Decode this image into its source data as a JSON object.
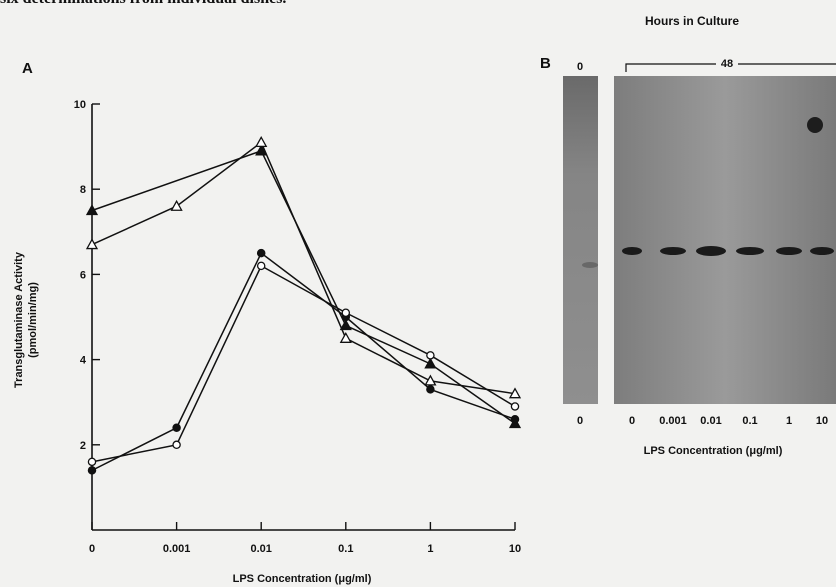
{
  "caption": "six determinations from individual dishes.",
  "panel_a": {
    "letter": "A"
  },
  "panel_b": {
    "letter": "B",
    "hours_title": "Hours in Culture",
    "time_left": "0",
    "time_right": "48",
    "left_lane_label": "0",
    "lane_labels": [
      "0",
      "0.001",
      "0.01",
      "0.1",
      "1",
      "10"
    ],
    "xlabel": "LPS Concentration (μg/ml)"
  },
  "chart_data": {
    "type": "line",
    "categories": [
      "0",
      "0.001",
      "0.01",
      "0.1",
      "1",
      "10"
    ],
    "ylabel": "Transglutaminase Activity",
    "ylabel2": "(pmol/min/mg)",
    "xlabel": "LPS Concentration (μg/ml)",
    "ylim": [
      0,
      10
    ],
    "yticks": [
      2,
      4,
      6,
      8,
      10
    ],
    "series": [
      {
        "marker": "triangle-filled",
        "values": [
          7.5,
          null,
          8.9,
          4.8,
          3.9,
          2.5
        ]
      },
      {
        "marker": "triangle-open",
        "values": [
          6.7,
          7.6,
          9.1,
          4.5,
          3.5,
          3.2
        ]
      },
      {
        "marker": "circle-filled",
        "values": [
          1.4,
          2.4,
          6.5,
          5.0,
          3.3,
          2.6
        ]
      },
      {
        "marker": "circle-open",
        "values": [
          1.6,
          2.0,
          6.2,
          5.1,
          4.1,
          2.9
        ]
      }
    ]
  }
}
